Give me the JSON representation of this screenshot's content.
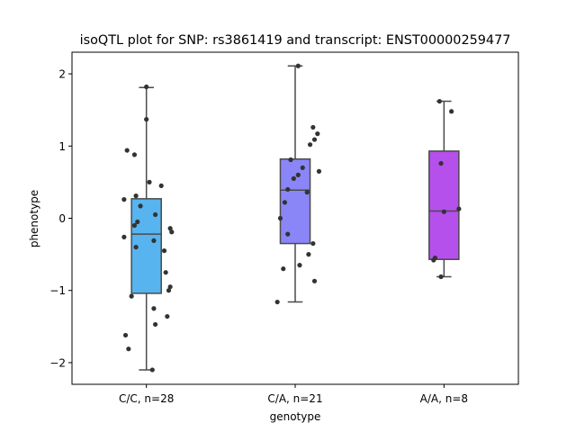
{
  "chart_data": {
    "type": "box",
    "title": "isoQTL plot for SNP: rs3861419 and transcript: ENST00000259477",
    "xlabel": "genotype",
    "ylabel": "phenotype",
    "ylim": [
      -2.3,
      2.3
    ],
    "yticks": [
      {
        "value": -2,
        "label": "−2"
      },
      {
        "value": -1,
        "label": "−1"
      },
      {
        "value": 0,
        "label": "0"
      },
      {
        "value": 1,
        "label": "1"
      },
      {
        "value": 2,
        "label": "2"
      }
    ],
    "categories": [
      "C/C, n=28",
      "C/A, n=21",
      "A/A, n=8"
    ],
    "colors": [
      "#57b4ef",
      "#8a86f7",
      "#b550ec"
    ],
    "boxes": [
      {
        "category": "C/C, n=28",
        "whisker_low": -2.1,
        "q1": -1.04,
        "median": -0.22,
        "q3": 0.27,
        "whisker_high": 1.81
      },
      {
        "category": "C/A, n=21",
        "whisker_low": -1.16,
        "q1": -0.35,
        "median": 0.39,
        "q3": 0.82,
        "whisker_high": 2.11
      },
      {
        "category": "A/A, n=8",
        "whisker_low": -0.81,
        "q1": -0.57,
        "median": 0.1,
        "q3": 0.93,
        "whisker_high": 1.62
      }
    ],
    "points": [
      [
        {
          "dx": 0.0,
          "y": 1.82
        },
        {
          "dx": 0.0,
          "y": 1.37
        },
        {
          "dx": -0.13,
          "y": 0.94
        },
        {
          "dx": -0.08,
          "y": 0.88
        },
        {
          "dx": 0.02,
          "y": 0.5
        },
        {
          "dx": 0.1,
          "y": 0.45
        },
        {
          "dx": -0.07,
          "y": 0.31
        },
        {
          "dx": -0.15,
          "y": 0.26
        },
        {
          "dx": -0.04,
          "y": 0.17
        },
        {
          "dx": 0.06,
          "y": 0.05
        },
        {
          "dx": -0.06,
          "y": -0.05
        },
        {
          "dx": -0.08,
          "y": -0.1
        },
        {
          "dx": 0.16,
          "y": -0.14
        },
        {
          "dx": 0.17,
          "y": -0.19
        },
        {
          "dx": -0.15,
          "y": -0.26
        },
        {
          "dx": 0.05,
          "y": -0.31
        },
        {
          "dx": -0.07,
          "y": -0.4
        },
        {
          "dx": 0.12,
          "y": -0.45
        },
        {
          "dx": 0.13,
          "y": -0.75
        },
        {
          "dx": 0.16,
          "y": -0.95
        },
        {
          "dx": 0.15,
          "y": -1.0
        },
        {
          "dx": -0.1,
          "y": -1.08
        },
        {
          "dx": 0.05,
          "y": -1.25
        },
        {
          "dx": 0.14,
          "y": -1.36
        },
        {
          "dx": 0.06,
          "y": -1.47
        },
        {
          "dx": -0.14,
          "y": -1.62
        },
        {
          "dx": -0.12,
          "y": -1.81
        },
        {
          "dx": 0.04,
          "y": -2.1
        }
      ],
      [
        {
          "dx": 0.02,
          "y": 2.11
        },
        {
          "dx": 0.12,
          "y": 1.26
        },
        {
          "dx": 0.15,
          "y": 1.17
        },
        {
          "dx": 0.13,
          "y": 1.09
        },
        {
          "dx": 0.1,
          "y": 1.02
        },
        {
          "dx": -0.03,
          "y": 0.81
        },
        {
          "dx": 0.05,
          "y": 0.7
        },
        {
          "dx": 0.16,
          "y": 0.65
        },
        {
          "dx": 0.02,
          "y": 0.6
        },
        {
          "dx": -0.01,
          "y": 0.55
        },
        {
          "dx": -0.05,
          "y": 0.4
        },
        {
          "dx": 0.08,
          "y": 0.36
        },
        {
          "dx": -0.07,
          "y": 0.22
        },
        {
          "dx": -0.1,
          "y": 0.0
        },
        {
          "dx": -0.05,
          "y": -0.22
        },
        {
          "dx": 0.12,
          "y": -0.35
        },
        {
          "dx": 0.09,
          "y": -0.5
        },
        {
          "dx": 0.03,
          "y": -0.65
        },
        {
          "dx": -0.08,
          "y": -0.7
        },
        {
          "dx": 0.13,
          "y": -0.87
        },
        {
          "dx": -0.12,
          "y": -1.16
        }
      ],
      [
        {
          "dx": -0.03,
          "y": 1.62
        },
        {
          "dx": 0.05,
          "y": 1.48
        },
        {
          "dx": -0.02,
          "y": 0.76
        },
        {
          "dx": 0.1,
          "y": 0.13
        },
        {
          "dx": 0.0,
          "y": 0.09
        },
        {
          "dx": -0.06,
          "y": -0.55
        },
        {
          "dx": -0.07,
          "y": -0.58
        },
        {
          "dx": -0.02,
          "y": -0.81
        }
      ]
    ],
    "point_color": "#333333",
    "line_color": "#4a4a4a",
    "grid": false,
    "legend": "none"
  }
}
